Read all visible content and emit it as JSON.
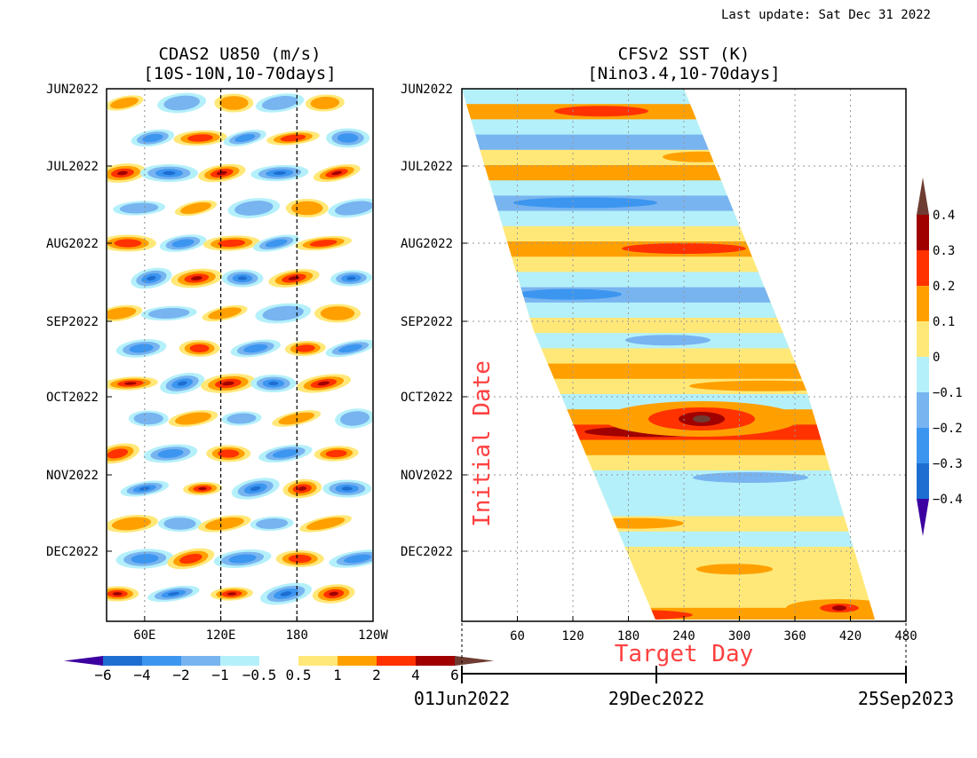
{
  "header": {
    "last_update": "Last update: Sat Dec 31 2022"
  },
  "palette": {
    "u850_colors": [
      "#3c00a0",
      "#1e6ed2",
      "#3c96f0",
      "#78b4f0",
      "#b4f0fa",
      "#ffffff",
      "#ffe878",
      "#ffa000",
      "#ff3200",
      "#a00000",
      "#6e3c32"
    ],
    "sst_colors": [
      "#3c00a0",
      "#1e6ed2",
      "#3c96f0",
      "#78b4f0",
      "#b4f0fa",
      "#ffe878",
      "#ffa000",
      "#ff3200",
      "#a00000",
      "#6e3c32"
    ]
  },
  "chart_data": [
    {
      "type": "heatmap",
      "title": "CDAS2 U850 (m/s)",
      "subtitle": "[10S-10N,10-70days]",
      "x_ticks": [
        "60E",
        "120E",
        "180",
        "120W"
      ],
      "x_tick_values": [
        60,
        120,
        180,
        240
      ],
      "xlim": [
        30,
        240
      ],
      "y_ticks": [
        "JUN2022",
        "JUL2022",
        "AUG2022",
        "SEP2022",
        "OCT2022",
        "NOV2022",
        "DEC2022"
      ],
      "y_range": [
        "2022-06-01",
        "2022-12-31"
      ],
      "reference_lines": [
        120,
        180
      ],
      "colorbar": {
        "orientation": "horizontal",
        "labels": [
          "−6",
          "−4",
          "−2",
          "−1",
          "−0.5",
          "0.5",
          "1",
          "2",
          "4",
          "6"
        ],
        "levels": [
          -6,
          -4,
          -2,
          -1,
          -0.5,
          0.5,
          1,
          2,
          4,
          6
        ]
      }
    },
    {
      "type": "heatmap",
      "title": "CFSv2 SST (K)",
      "subtitle": "[Nino3.4,10-70days]",
      "ylabel": "Initial Date",
      "xlabel": "Target Day",
      "x_ticks": [
        "60",
        "120",
        "180",
        "240",
        "300",
        "360",
        "420",
        "480"
      ],
      "x_tick_values": [
        60,
        120,
        180,
        240,
        300,
        360,
        420,
        480
      ],
      "xlim": [
        0,
        480
      ],
      "y_ticks": [
        "JUN2022",
        "JUL2022",
        "AUG2022",
        "SEP2022",
        "OCT2022",
        "NOV2022",
        "DEC2022"
      ],
      "date_axis": [
        "01Jun2022",
        "29Dec2022",
        "25Sep2023"
      ],
      "colorbar": {
        "orientation": "vertical",
        "labels": [
          "0.4",
          "0.3",
          "0.2",
          "0.1",
          "0",
          "−0.1",
          "−0.2",
          "−0.3",
          "−0.4"
        ],
        "levels": [
          0.4,
          0.3,
          0.2,
          0.1,
          0,
          -0.1,
          -0.2,
          -0.3,
          -0.4
        ]
      }
    }
  ]
}
